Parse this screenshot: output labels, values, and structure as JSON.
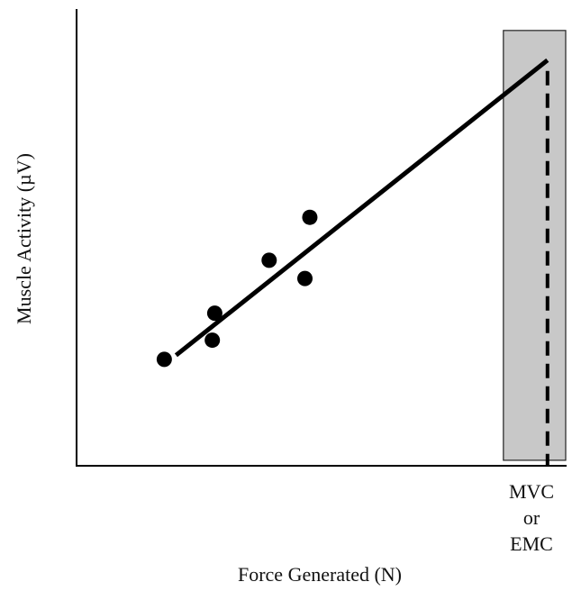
{
  "chart_data": {
    "type": "scatter",
    "title": "",
    "xlabel": "Force Generated (N)",
    "ylabel": "Muscle Activity (µV)",
    "xlim": [
      0,
      100
    ],
    "ylim": [
      0,
      100
    ],
    "grid": false,
    "points": [
      {
        "x": 17.9,
        "y": 23.3
      },
      {
        "x": 27.7,
        "y": 27.5
      },
      {
        "x": 28.2,
        "y": 33.4
      },
      {
        "x": 39.3,
        "y": 45.0
      },
      {
        "x": 46.6,
        "y": 41.0
      },
      {
        "x": 47.6,
        "y": 54.4
      }
    ],
    "fit_line": {
      "x": [
        20.3,
        96.1
      ],
      "y": [
        24.2,
        88.8
      ]
    },
    "shaded_region": {
      "x": [
        87.1,
        100
      ],
      "y": [
        1.2,
        95.3
      ]
    },
    "marker_x": 96.1,
    "marker_label_lines": [
      "MVC",
      "or",
      "EMC"
    ],
    "colors": {
      "points": "#000000",
      "line": "#000000",
      "shade": "#c8c8c8",
      "axis": "#000000"
    }
  }
}
